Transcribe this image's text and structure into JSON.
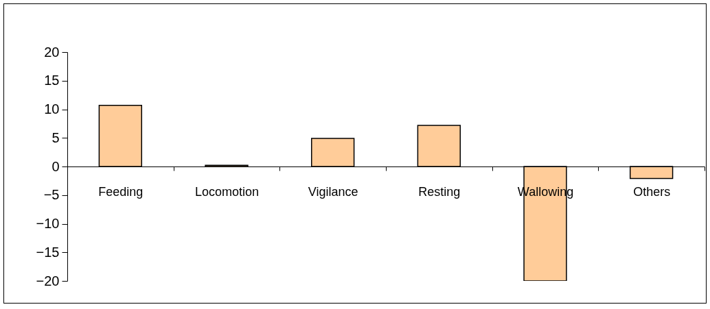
{
  "chart_data": {
    "type": "bar",
    "categories": [
      "Feeding",
      "Locomotion",
      "Vigilance",
      "Resting",
      "Wallowing",
      "Others"
    ],
    "values": [
      10.7,
      0.2,
      4.9,
      7.2,
      -20,
      -2.1
    ],
    "color": "#ffcc99",
    "ylim": [
      -20,
      20
    ],
    "yticks": [
      -20,
      -15,
      -10,
      -5,
      0,
      5,
      10,
      15,
      20
    ],
    "grid": false
  }
}
